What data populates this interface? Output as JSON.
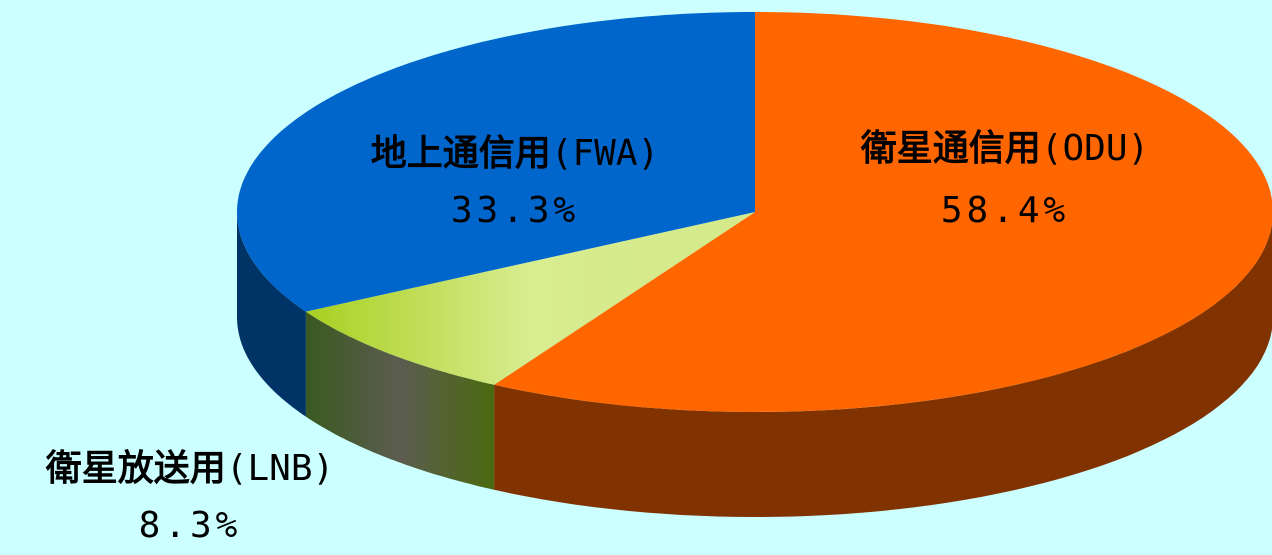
{
  "chart_data": {
    "type": "pie",
    "categories": [
      "衛星通信用(ODU)",
      "衛星放送用(LNB)",
      "地上通信用(FWA)"
    ],
    "values": [
      58.4,
      8.3,
      33.3
    ],
    "value_labels": [
      "58.4%",
      "8.3%",
      "33.3%"
    ],
    "colors": [
      "#ff6600",
      "#c4e05a",
      "#0066cc"
    ]
  }
}
